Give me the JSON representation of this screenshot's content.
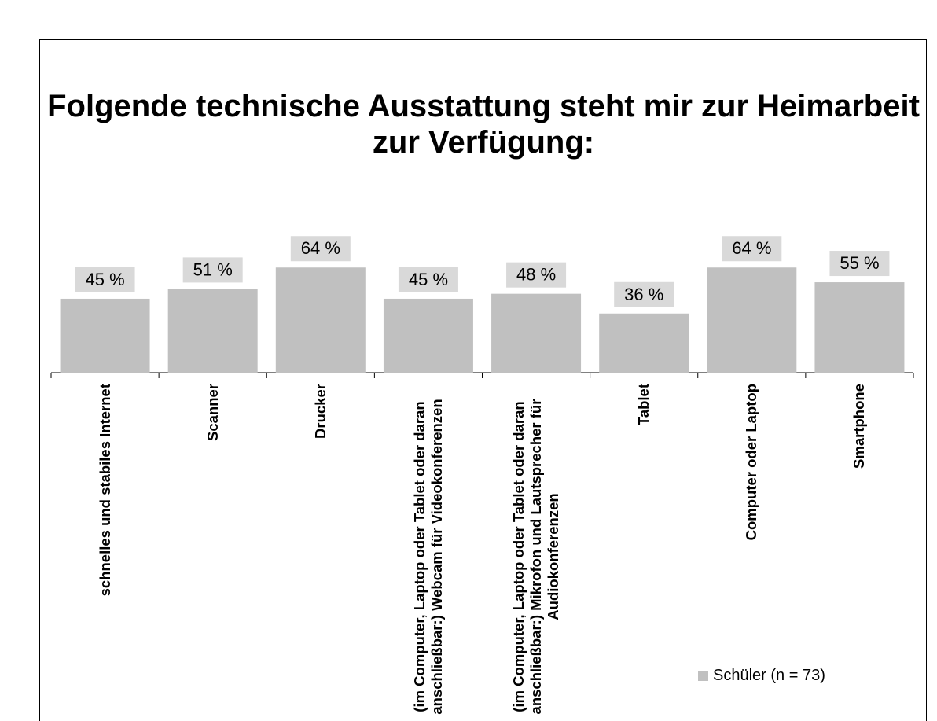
{
  "chart_data": {
    "type": "bar",
    "title": "Folgende technische Ausstattung steht mir zur Heimarbeit zur Verfügung:",
    "categories": [
      "schnelles und stabiles Internet",
      "Scanner",
      "Drucker",
      "(im Computer, Laptop oder Tablet oder daran anschließbar:) Webcam für Videokonferenzen",
      "(im Computer, Laptop oder Tablet oder daran anschließbar:) Mikrofon und Lautsprecher für Audiokonferenzen",
      "Tablet",
      "Computer oder Laptop",
      "Smartphone"
    ],
    "series": [
      {
        "name": "Schüler (n = 73)",
        "color": "#c0c0c0",
        "values": [
          45,
          51,
          64,
          45,
          48,
          36,
          64,
          55
        ],
        "value_labels": [
          "45 %",
          "51 %",
          "64 %",
          "45 %",
          "48 %",
          "36 %",
          "64 %",
          "55 %"
        ]
      }
    ],
    "ylim": [
      0,
      100
    ],
    "legend": "bottom-right"
  }
}
